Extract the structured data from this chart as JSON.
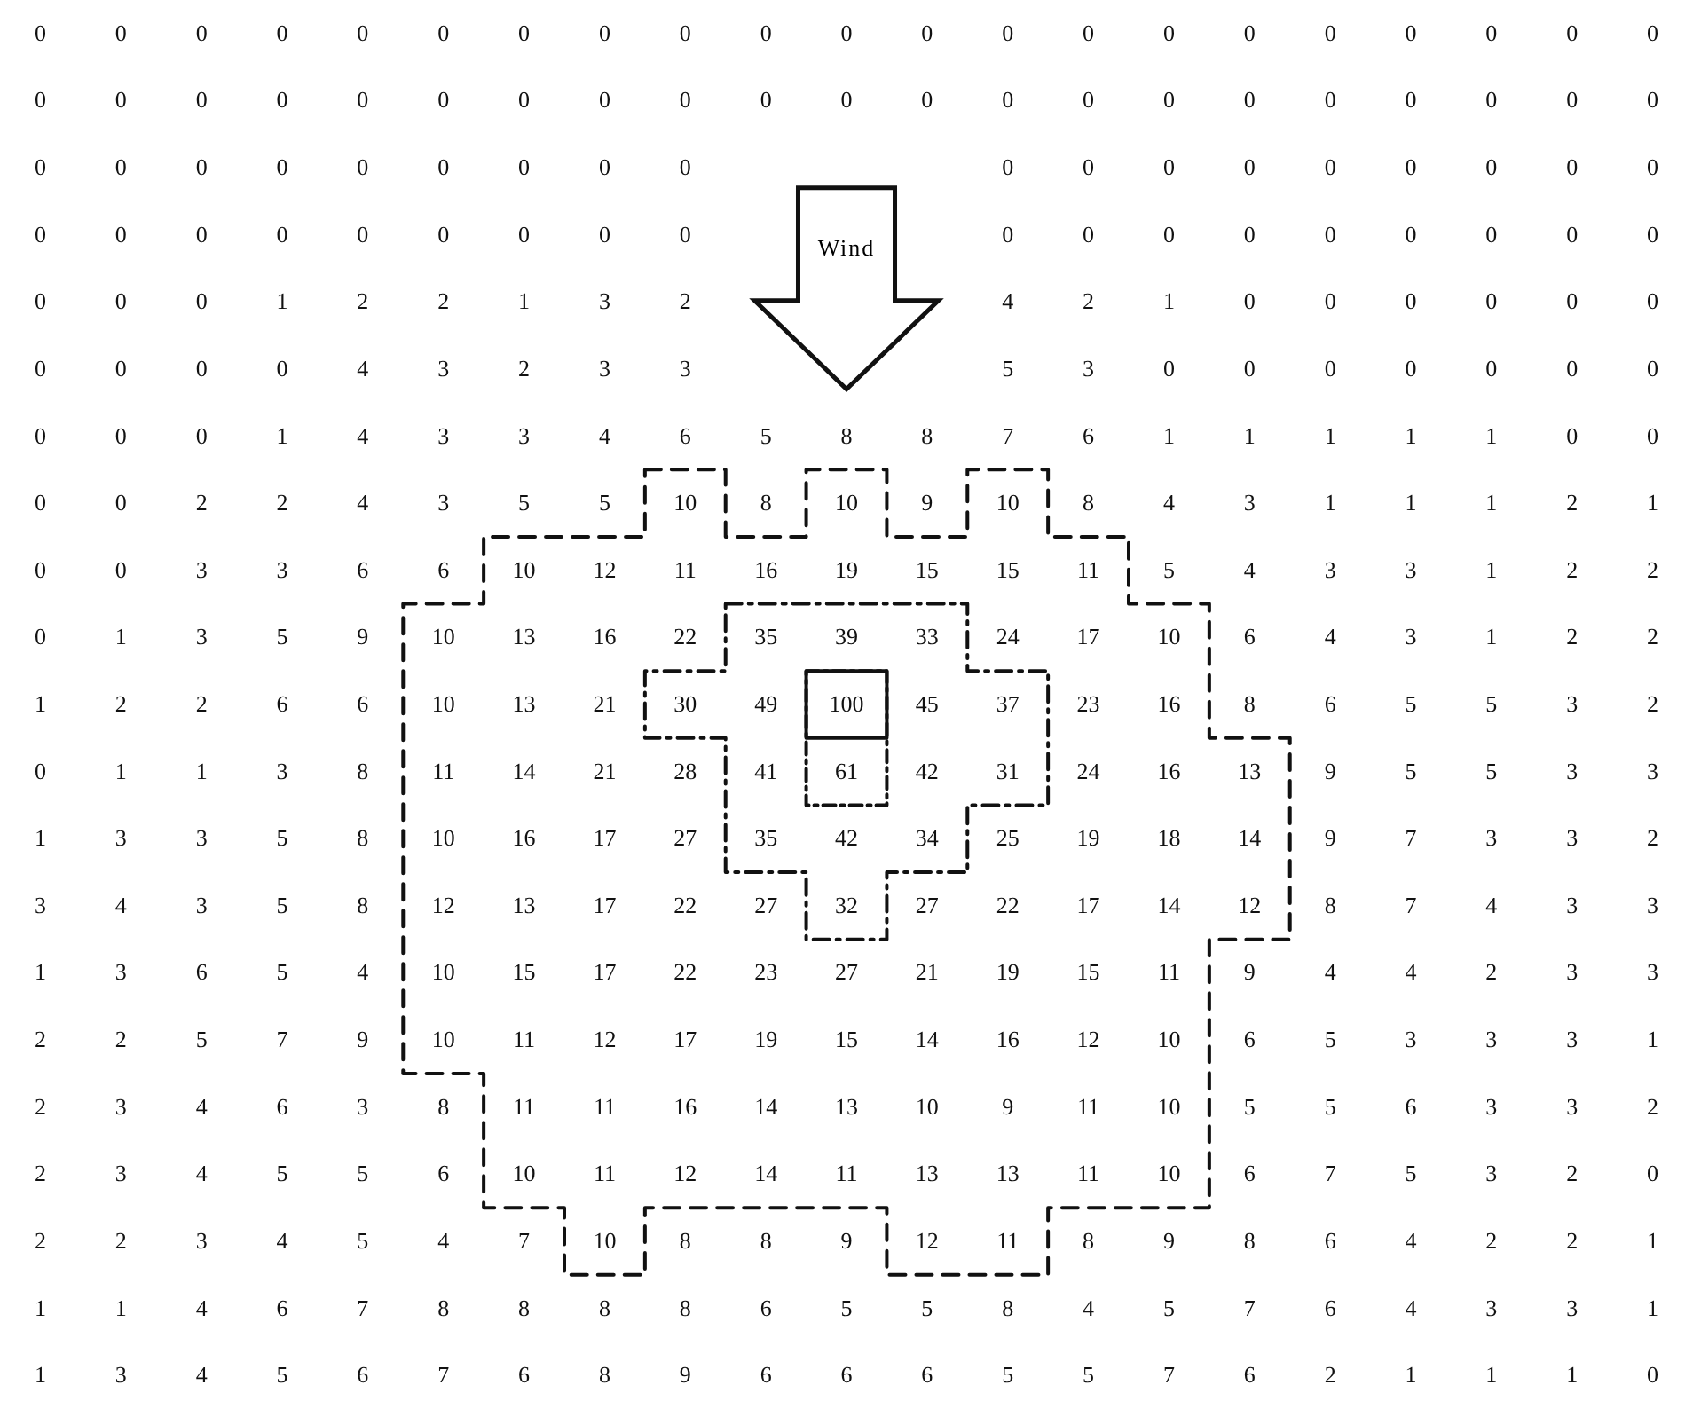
{
  "chart_data": {
    "type": "heatmap",
    "categories": [
      null,
      null,
      null,
      null,
      null,
      null,
      null,
      null,
      null,
      null,
      null,
      null,
      null,
      null,
      null,
      null,
      null,
      null,
      null,
      null,
      null
    ],
    "y_categories": [
      null,
      null,
      null,
      null,
      null,
      null,
      null,
      null,
      null,
      null,
      null,
      null,
      null,
      null,
      null,
      null,
      null,
      null,
      null,
      null,
      null
    ],
    "cells": [
      [
        0,
        0,
        0,
        0,
        0,
        0,
        0,
        0,
        0,
        0,
        0,
        0,
        0,
        0,
        0,
        0,
        0,
        0,
        0,
        0,
        0
      ],
      [
        0,
        0,
        0,
        0,
        0,
        0,
        0,
        0,
        0,
        0,
        0,
        0,
        0,
        0,
        0,
        0,
        0,
        0,
        0,
        0,
        0
      ],
      [
        0,
        0,
        0,
        0,
        0,
        0,
        0,
        0,
        0,
        null,
        null,
        null,
        0,
        0,
        0,
        0,
        0,
        0,
        0,
        0,
        0
      ],
      [
        0,
        0,
        0,
        0,
        0,
        0,
        0,
        0,
        0,
        null,
        null,
        null,
        0,
        0,
        0,
        0,
        0,
        0,
        0,
        0,
        0
      ],
      [
        0,
        0,
        0,
        1,
        2,
        2,
        1,
        3,
        2,
        null,
        null,
        null,
        4,
        2,
        1,
        0,
        0,
        0,
        0,
        0,
        0
      ],
      [
        0,
        0,
        0,
        0,
        4,
        3,
        2,
        3,
        3,
        null,
        null,
        null,
        5,
        3,
        0,
        0,
        0,
        0,
        0,
        0,
        0
      ],
      [
        0,
        0,
        0,
        1,
        4,
        3,
        3,
        4,
        6,
        5,
        8,
        8,
        7,
        6,
        1,
        1,
        1,
        1,
        1,
        0,
        0
      ],
      [
        0,
        0,
        2,
        2,
        4,
        3,
        5,
        5,
        10,
        8,
        10,
        9,
        10,
        8,
        4,
        3,
        1,
        1,
        1,
        2,
        1
      ],
      [
        0,
        0,
        3,
        3,
        6,
        6,
        10,
        12,
        11,
        16,
        19,
        15,
        15,
        11,
        5,
        4,
        3,
        3,
        1,
        2,
        2
      ],
      [
        0,
        1,
        3,
        5,
        9,
        10,
        13,
        16,
        22,
        35,
        39,
        33,
        24,
        17,
        10,
        6,
        4,
        3,
        1,
        2,
        2
      ],
      [
        1,
        2,
        2,
        6,
        6,
        10,
        13,
        21,
        30,
        49,
        100,
        45,
        37,
        23,
        16,
        8,
        6,
        5,
        5,
        3,
        2
      ],
      [
        0,
        1,
        1,
        3,
        8,
        11,
        14,
        21,
        28,
        41,
        61,
        42,
        31,
        24,
        16,
        13,
        9,
        5,
        5,
        3,
        3
      ],
      [
        1,
        3,
        3,
        5,
        8,
        10,
        16,
        17,
        27,
        35,
        42,
        34,
        25,
        19,
        18,
        14,
        9,
        7,
        3,
        3,
        2
      ],
      [
        3,
        4,
        3,
        5,
        8,
        12,
        13,
        17,
        22,
        27,
        32,
        27,
        22,
        17,
        14,
        12,
        8,
        7,
        4,
        3,
        3
      ],
      [
        1,
        3,
        6,
        5,
        4,
        10,
        15,
        17,
        22,
        23,
        27,
        21,
        19,
        15,
        11,
        9,
        4,
        4,
        2,
        3,
        3
      ],
      [
        2,
        2,
        5,
        7,
        9,
        10,
        11,
        12,
        17,
        19,
        15,
        14,
        16,
        12,
        10,
        6,
        5,
        3,
        3,
        3,
        1
      ],
      [
        2,
        3,
        4,
        6,
        3,
        8,
        11,
        11,
        16,
        14,
        13,
        10,
        9,
        11,
        10,
        5,
        5,
        6,
        3,
        3,
        2
      ],
      [
        2,
        3,
        4,
        5,
        5,
        6,
        10,
        11,
        12,
        14,
        11,
        13,
        13,
        11,
        10,
        6,
        7,
        5,
        3,
        2,
        0
      ],
      [
        2,
        2,
        3,
        4,
        5,
        4,
        7,
        10,
        8,
        8,
        9,
        12,
        11,
        8,
        9,
        8,
        6,
        4,
        2,
        2,
        1
      ],
      [
        1,
        1,
        4,
        6,
        7,
        8,
        8,
        8,
        8,
        6,
        5,
        5,
        8,
        4,
        5,
        7,
        6,
        4,
        3,
        3,
        1
      ],
      [
        1,
        3,
        4,
        5,
        6,
        7,
        6,
        8,
        9,
        6,
        6,
        6,
        5,
        5,
        7,
        6,
        2,
        1,
        1,
        1,
        0
      ]
    ],
    "data_labels": true,
    "annotations": [
      "Wind"
    ]
  }
}
